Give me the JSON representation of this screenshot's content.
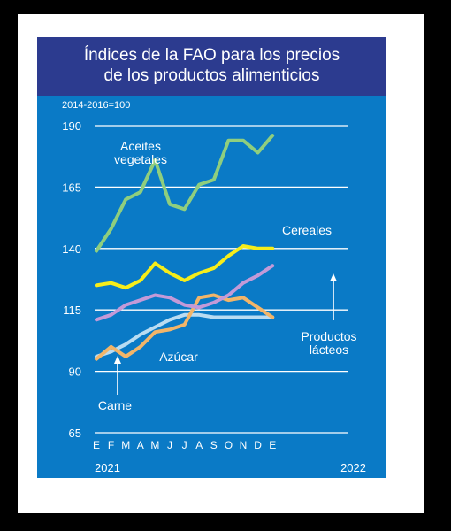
{
  "colors": {
    "background": "#000000",
    "paper": "#ffffff",
    "panel": "#0a7ac6",
    "title_band": "#2c3b8f",
    "text": "#ffffff",
    "gridline": "#ffffff"
  },
  "chart_data": {
    "type": "line",
    "title_lines": [
      "Índices de la FAO para los precios",
      "de los productos alimenticios"
    ],
    "unit_note": "2014-2016=100",
    "x": [
      "E",
      "F",
      "M",
      "A",
      "M",
      "J",
      "J",
      "A",
      "S",
      "O",
      "N",
      "D",
      "E"
    ],
    "year_labels": [
      "2021",
      "2022"
    ],
    "ylim": [
      65,
      190
    ],
    "yticks": [
      65,
      90,
      115,
      140,
      165,
      190
    ],
    "grid": "horizontal",
    "series": [
      {
        "name": "Aceites vegetales",
        "color": "#8fce7e",
        "values": [
          139,
          148,
          160,
          163,
          176,
          158,
          156,
          166,
          168,
          184,
          184,
          179,
          186
        ]
      },
      {
        "name": "Cereales",
        "color": "#f6ed1a",
        "values": [
          125,
          126,
          124,
          127,
          134,
          130,
          127,
          130,
          132,
          137,
          141,
          140,
          140
        ]
      },
      {
        "name": "Productos lácteos",
        "color": "#c39ad8",
        "values": [
          111,
          113,
          117,
          119,
          121,
          120,
          117,
          116,
          118,
          121,
          126,
          129,
          133
        ]
      },
      {
        "name": "Azúcar",
        "color": "#f2b569",
        "values": [
          95,
          100,
          96,
          100,
          106,
          107,
          109,
          120,
          121,
          119,
          120,
          116,
          112
        ]
      },
      {
        "name": "Carne",
        "color": "#b9dcf2",
        "values": [
          96,
          98,
          101,
          105,
          108,
          111,
          113,
          113,
          112,
          112,
          112,
          112,
          112
        ]
      }
    ],
    "annotations": [
      {
        "series": "Aceites vegetales",
        "lines": [
          "Aceites",
          "vegetales"
        ]
      },
      {
        "series": "Cereales",
        "lines": [
          "Cereales"
        ]
      },
      {
        "series": "Productos lácteos",
        "lines": [
          "Productos",
          "lácteos"
        ],
        "arrow": "up"
      },
      {
        "series": "Azúcar",
        "lines": [
          "Azúcar"
        ]
      },
      {
        "series": "Carne",
        "lines": [
          "Carne"
        ],
        "arrow": "up"
      }
    ]
  }
}
